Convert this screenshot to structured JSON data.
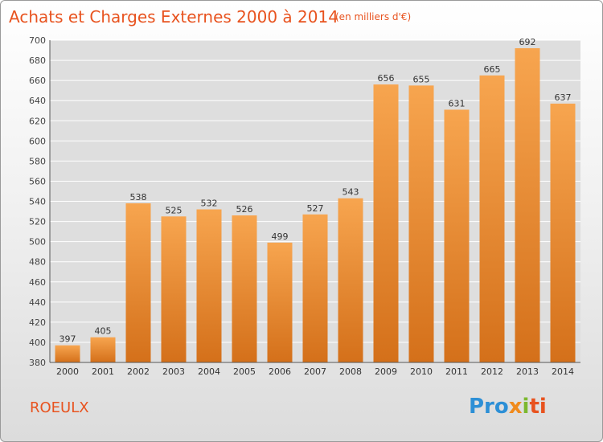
{
  "header": {
    "title": "Achats et Charges Externes 2000 à 2014",
    "unit": "(en milliers d'€)"
  },
  "footer": {
    "commune": "ROEULX",
    "logo": {
      "p1": "Pro",
      "p2": "x",
      "p3": "i",
      "p4": "ti"
    }
  },
  "colors": {
    "bar_top": "#f7a54f",
    "bar_bottom": "#d4701a",
    "grid": "#ffffff",
    "title": "#e8531f"
  },
  "chart_data": {
    "type": "bar",
    "title": "Achats et Charges Externes 2000 à 2014",
    "categories": [
      "2000",
      "2001",
      "2002",
      "2003",
      "2004",
      "2005",
      "2006",
      "2007",
      "2008",
      "2009",
      "2010",
      "2011",
      "2012",
      "2013",
      "2014"
    ],
    "values": [
      397,
      405,
      538,
      525,
      532,
      526,
      499,
      527,
      543,
      656,
      655,
      631,
      665,
      692,
      637
    ],
    "ylim": [
      380,
      700
    ],
    "yticks": [
      380,
      400,
      420,
      440,
      460,
      480,
      500,
      520,
      540,
      560,
      580,
      600,
      620,
      640,
      660,
      680,
      700
    ],
    "grid": true,
    "xlabel": "",
    "ylabel": ""
  }
}
